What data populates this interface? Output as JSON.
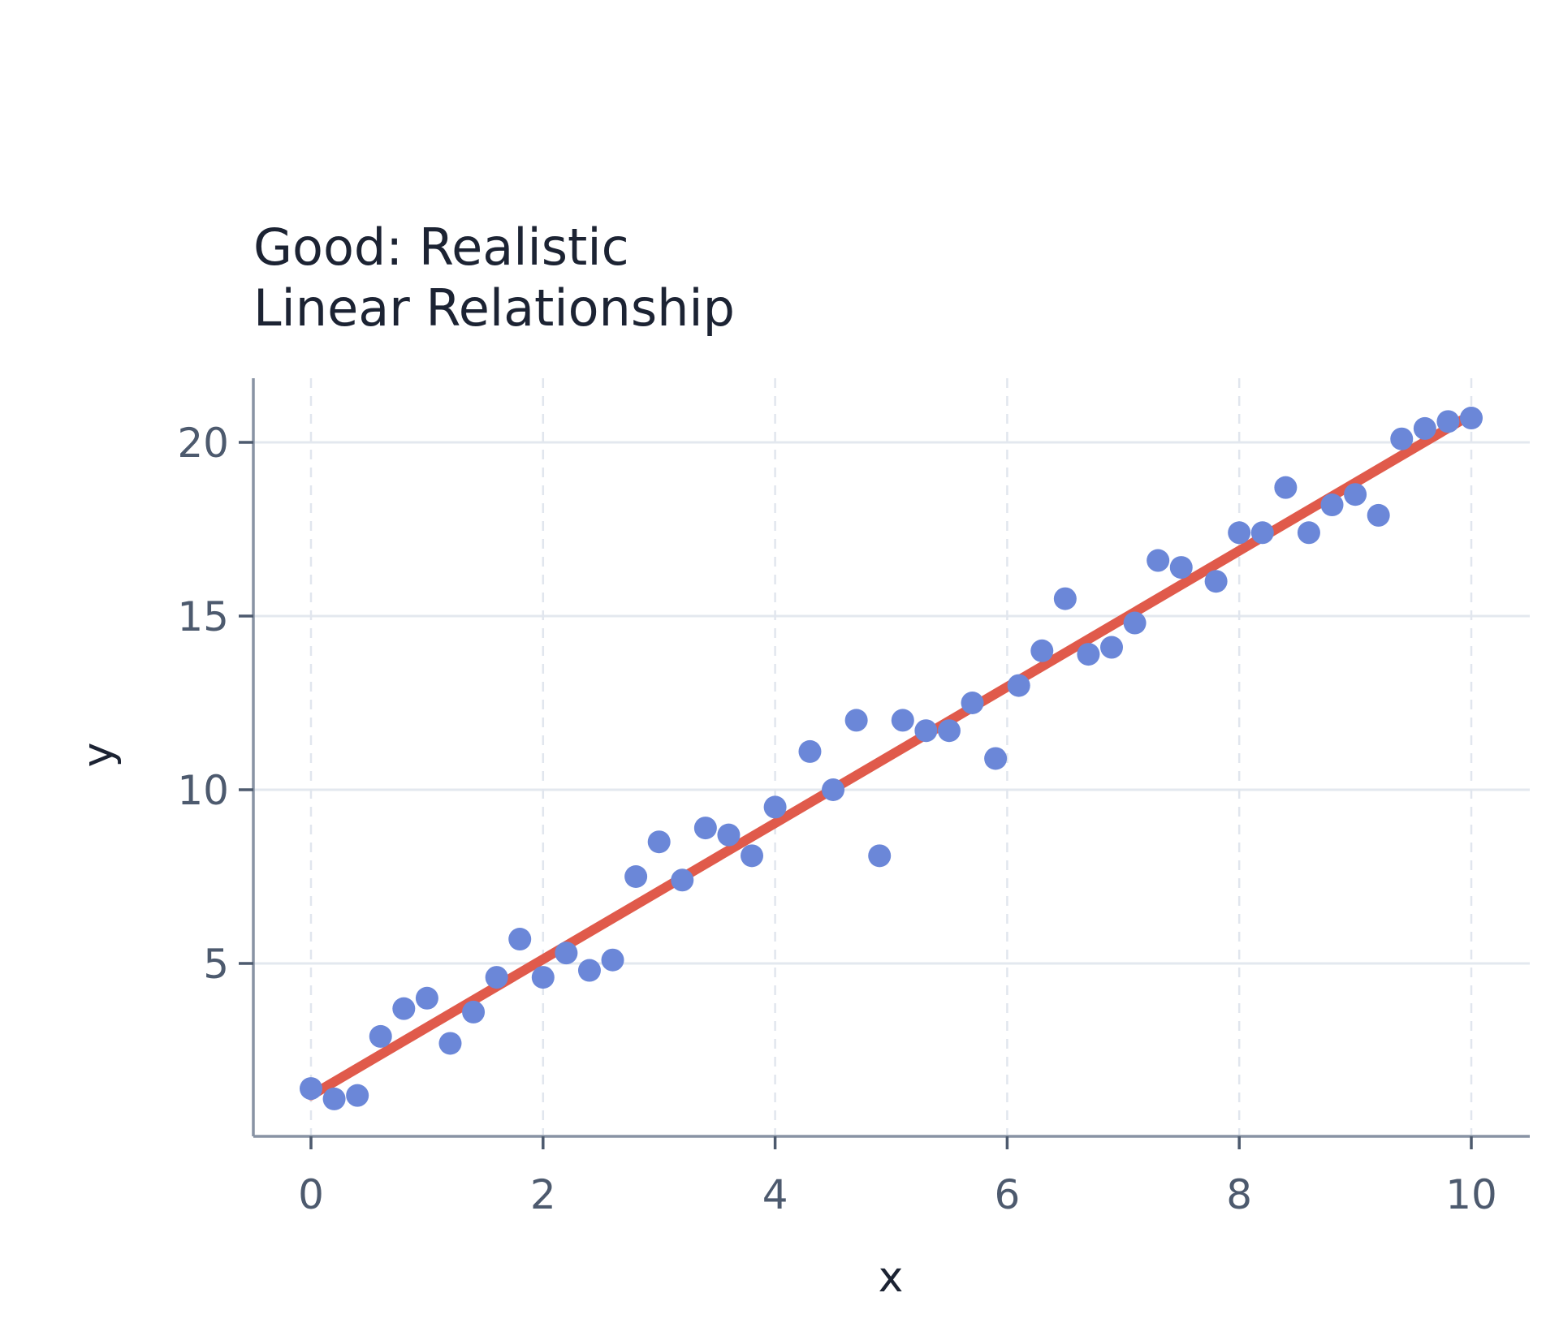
{
  "chart_data": {
    "type": "scatter",
    "title_lines": [
      "Good: Realistic",
      "Linear Relationship"
    ],
    "xlabel": "x",
    "ylabel": "y",
    "xlim": [
      -0.5,
      10.5
    ],
    "ylim": [
      -0.3,
      22
    ],
    "xticks": [
      0,
      2,
      4,
      6,
      8,
      10
    ],
    "yticks": [
      5,
      10,
      15,
      20
    ],
    "grid": true,
    "legend": "none",
    "colors": {
      "points": "#6b87d8",
      "line": "#e05a4b"
    },
    "series": [
      {
        "type": "scatter",
        "x": [
          0.0,
          0.2,
          0.4,
          0.6,
          0.8,
          1.0,
          1.2,
          1.4,
          1.6,
          1.8,
          2.0,
          2.2,
          2.4,
          2.6,
          2.8,
          3.0,
          3.2,
          3.4,
          3.6,
          3.8,
          4.0,
          4.3,
          4.5,
          4.7,
          4.9,
          5.1,
          5.3,
          5.5,
          5.7,
          5.9,
          6.1,
          6.3,
          6.5,
          6.7,
          6.9,
          7.1,
          7.3,
          7.5,
          7.8,
          8.0,
          8.2,
          8.4,
          8.6,
          8.8,
          9.0,
          9.2,
          9.4,
          9.6,
          9.8,
          10.0
        ],
        "y": [
          1.4,
          1.1,
          1.2,
          2.9,
          3.7,
          4.0,
          2.7,
          3.6,
          4.6,
          5.7,
          4.6,
          5.3,
          4.8,
          5.1,
          7.5,
          8.5,
          7.4,
          8.9,
          8.7,
          8.1,
          9.5,
          11.1,
          10.0,
          12.0,
          8.1,
          12.0,
          11.7,
          11.7,
          12.5,
          10.9,
          13.0,
          14.0,
          15.5,
          13.9,
          14.1,
          14.8,
          16.6,
          16.4,
          16.0,
          17.4,
          17.4,
          18.7,
          17.4,
          18.2,
          18.5,
          17.9,
          20.1,
          20.4,
          20.6,
          20.7
        ]
      },
      {
        "type": "line",
        "x": [
          0,
          10
        ],
        "y": [
          1.2,
          20.8
        ]
      }
    ]
  }
}
